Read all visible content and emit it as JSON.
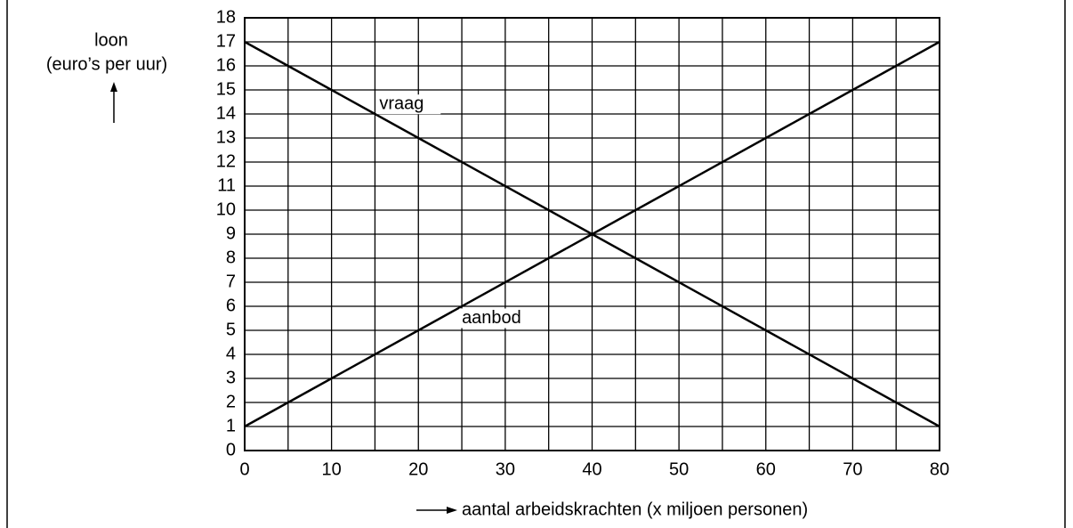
{
  "chart_data": {
    "type": "line",
    "y_label": [
      "loon",
      "(euro’s per uur)"
    ],
    "x_label": "aantal arbeidskrachten (x miljoen personen)",
    "annotations": [
      "vraag",
      "aanbod"
    ],
    "x": [
      0,
      80
    ],
    "series": [
      {
        "name": "vraag",
        "color": "#000000",
        "values": [
          17,
          1
        ]
      },
      {
        "name": "aanbod",
        "color": "#000000",
        "values": [
          1,
          17
        ]
      }
    ],
    "xlim": [
      0,
      80
    ],
    "xticks": [
      0,
      10,
      20,
      30,
      40,
      50,
      60,
      70,
      80
    ],
    "xgrid_minor": [
      5,
      15,
      25,
      35,
      45,
      55,
      65,
      75
    ],
    "ylim": [
      0,
      18
    ],
    "yticks": [
      0,
      1,
      2,
      3,
      4,
      5,
      6,
      7,
      8,
      9,
      10,
      11,
      12,
      13,
      14,
      15,
      16,
      17,
      18
    ],
    "grid": true
  }
}
